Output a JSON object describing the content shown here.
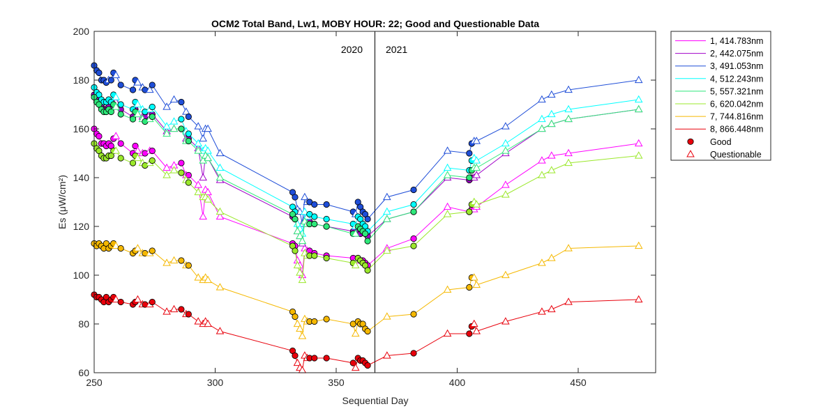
{
  "chart_data": {
    "type": "line",
    "title": "OCM2 Total Band,  Lw1, MOBY HOUR: 22;  Good and Questionable Data",
    "xlabel": "Sequential Day",
    "ylabel": "Es (μW/cm²)",
    "xlim": [
      250,
      482
    ],
    "ylim": [
      60,
      200
    ],
    "xticks": [
      250,
      300,
      350,
      400,
      450
    ],
    "yticks": [
      60,
      80,
      100,
      120,
      140,
      160,
      180,
      200
    ],
    "grid": false,
    "legend_position": "outside-top-right",
    "year_divider": {
      "x": 366,
      "left_label": "2020",
      "right_label": "2021"
    },
    "x": [
      250,
      251,
      252,
      253,
      254,
      255,
      256,
      257,
      258,
      259,
      261,
      266,
      267,
      268,
      270,
      271,
      273,
      274,
      280,
      283,
      286,
      288,
      289,
      293,
      295,
      296,
      297,
      302,
      332,
      333,
      334,
      335,
      336,
      337,
      338,
      339,
      341,
      346,
      357,
      358,
      359,
      360,
      361,
      362,
      363,
      371,
      382,
      396,
      405,
      406,
      407,
      408,
      420,
      435,
      439,
      446,
      475
    ],
    "series": [
      {
        "name": "1, 414.783nm",
        "color": "#ff00ff",
        "values": [
          160,
          158,
          157,
          154,
          154,
          153,
          154,
          153,
          156,
          157,
          154,
          150,
          153,
          151,
          150,
          150,
          151,
          151,
          144,
          145,
          146,
          141,
          141,
          137,
          124,
          135,
          134,
          124,
          113,
          112,
          106,
          104,
          100,
          111,
          110,
          110,
          109,
          108,
          107,
          106,
          107,
          106,
          106,
          105,
          104,
          111,
          115,
          128,
          126,
          127,
          127,
          128,
          137,
          147,
          149,
          150,
          154
        ],
        "quality": [
          "G",
          "G",
          "G",
          "G",
          "G",
          "G",
          "G",
          "G",
          "G",
          "Q",
          "G",
          "G",
          "G",
          "Q",
          "Q",
          "G",
          "Q",
          "G",
          "Q",
          "Q",
          "G",
          "Q",
          "G",
          "Q",
          "Q",
          "Q",
          "Q",
          "Q",
          "G",
          "G",
          "Q",
          "Q",
          "Q",
          "Q",
          "Q",
          "G",
          "G",
          "G",
          "G",
          "Q",
          "G",
          "G",
          "G",
          "G",
          "G",
          "Q",
          "G",
          "Q",
          "G",
          "G",
          "Q",
          "Q",
          "Q",
          "Q",
          "Q",
          "Q",
          "Q"
        ]
      },
      {
        "name": "2, 442.075nm",
        "color": "#a000c8",
        "values": [
          174,
          172,
          171,
          169,
          168,
          168,
          169,
          168,
          170,
          171,
          168,
          165,
          168,
          166,
          165,
          165,
          166,
          166,
          159,
          160,
          160,
          156,
          156,
          152,
          140,
          149,
          148,
          139,
          124,
          123,
          118,
          116,
          113,
          123,
          122,
          122,
          121,
          120,
          118,
          117,
          118,
          117,
          118,
          117,
          116,
          123,
          126,
          140,
          139,
          140,
          140,
          141,
          150,
          160,
          162,
          164,
          168
        ],
        "quality": [
          "G",
          "G",
          "G",
          "G",
          "G",
          "G",
          "G",
          "G",
          "G",
          "Q",
          "G",
          "G",
          "G",
          "Q",
          "Q",
          "G",
          "Q",
          "G",
          "Q",
          "Q",
          "G",
          "Q",
          "G",
          "Q",
          "Q",
          "Q",
          "Q",
          "Q",
          "G",
          "G",
          "Q",
          "Q",
          "Q",
          "Q",
          "Q",
          "G",
          "G",
          "G",
          "G",
          "Q",
          "G",
          "G",
          "G",
          "G",
          "G",
          "Q",
          "G",
          "Q",
          "G",
          "G",
          "Q",
          "Q",
          "Q",
          "Q",
          "Q",
          "Q",
          "Q"
        ]
      },
      {
        "name": "3, 491.053nm",
        "color": "#1f4ed8",
        "values": [
          186,
          184,
          183,
          180,
          180,
          179,
          180,
          180,
          183,
          182,
          178,
          176,
          180,
          179,
          177,
          176,
          176,
          178,
          169,
          172,
          171,
          167,
          165,
          161,
          156,
          160,
          160,
          150,
          134,
          132,
          127,
          126,
          121,
          132,
          130,
          130,
          129,
          129,
          126,
          125,
          130,
          128,
          126,
          125,
          123,
          132,
          135,
          151,
          150,
          154,
          155,
          155,
          161,
          172,
          174,
          176,
          180
        ],
        "quality": [
          "G",
          "G",
          "G",
          "G",
          "G",
          "G",
          "Q",
          "G",
          "G",
          "Q",
          "G",
          "G",
          "G",
          "Q",
          "Q",
          "G",
          "Q",
          "G",
          "Q",
          "Q",
          "G",
          "Q",
          "G",
          "Q",
          "Q",
          "Q",
          "Q",
          "Q",
          "G",
          "G",
          "Q",
          "Q",
          "Q",
          "Q",
          "Q",
          "G",
          "G",
          "G",
          "G",
          "Q",
          "G",
          "G",
          "G",
          "G",
          "G",
          "Q",
          "G",
          "Q",
          "G",
          "G",
          "Q",
          "Q",
          "Q",
          "Q",
          "Q",
          "Q",
          "Q"
        ]
      },
      {
        "name": "4, 512.243nm",
        "color": "#00ffff",
        "values": [
          177,
          175,
          174,
          172,
          171,
          171,
          172,
          171,
          174,
          173,
          170,
          168,
          171,
          170,
          168,
          167,
          168,
          169,
          161,
          163,
          164,
          159,
          158,
          154,
          151,
          152,
          151,
          144,
          128,
          126,
          121,
          119,
          117,
          126,
          124,
          125,
          124,
          123,
          121,
          120,
          124,
          123,
          121,
          120,
          118,
          126,
          129,
          144,
          143,
          147,
          148,
          147,
          154,
          164,
          166,
          168,
          172
        ],
        "quality": [
          "G",
          "G",
          "G",
          "G",
          "G",
          "G",
          "G",
          "G",
          "G",
          "Q",
          "G",
          "G",
          "G",
          "Q",
          "Q",
          "G",
          "Q",
          "G",
          "Q",
          "Q",
          "G",
          "Q",
          "G",
          "Q",
          "Q",
          "Q",
          "Q",
          "Q",
          "G",
          "G",
          "Q",
          "Q",
          "Q",
          "Q",
          "Q",
          "G",
          "G",
          "G",
          "G",
          "Q",
          "G",
          "G",
          "G",
          "G",
          "G",
          "Q",
          "G",
          "Q",
          "G",
          "G",
          "Q",
          "Q",
          "Q",
          "Q",
          "Q",
          "Q",
          "Q"
        ]
      },
      {
        "name": "5, 557.321nm",
        "color": "#2ee87a",
        "values": [
          173,
          171,
          170,
          168,
          167,
          167,
          168,
          167,
          170,
          169,
          166,
          164,
          167,
          166,
          164,
          163,
          164,
          165,
          158,
          160,
          160,
          155,
          155,
          151,
          147,
          149,
          148,
          140,
          125,
          123,
          118,
          116,
          114,
          122,
          121,
          121,
          121,
          120,
          117,
          117,
          120,
          119,
          118,
          117,
          114,
          123,
          126,
          141,
          140,
          143,
          144,
          144,
          151,
          160,
          162,
          164,
          168
        ],
        "quality": [
          "G",
          "G",
          "G",
          "G",
          "G",
          "G",
          "G",
          "G",
          "G",
          "Q",
          "G",
          "G",
          "G",
          "Q",
          "Q",
          "G",
          "Q",
          "G",
          "Q",
          "Q",
          "G",
          "Q",
          "G",
          "Q",
          "Q",
          "Q",
          "Q",
          "Q",
          "G",
          "G",
          "Q",
          "Q",
          "Q",
          "Q",
          "Q",
          "G",
          "G",
          "G",
          "G",
          "Q",
          "G",
          "G",
          "G",
          "G",
          "G",
          "Q",
          "G",
          "Q",
          "G",
          "G",
          "Q",
          "Q",
          "Q",
          "Q",
          "Q",
          "Q",
          "Q"
        ]
      },
      {
        "name": "6, 620.042nm",
        "color": "#9be82b",
        "values": [
          154,
          152,
          151,
          149,
          148,
          148,
          149,
          149,
          151,
          151,
          148,
          146,
          149,
          148,
          146,
          145,
          146,
          147,
          141,
          143,
          142,
          139,
          138,
          134,
          132,
          132,
          131,
          126,
          112,
          110,
          104,
          101,
          98,
          109,
          108,
          108,
          108,
          107,
          105,
          104,
          107,
          106,
          105,
          104,
          102,
          110,
          112,
          125,
          126,
          129,
          130,
          129,
          133,
          141,
          143,
          146,
          149
        ],
        "quality": [
          "G",
          "G",
          "G",
          "G",
          "G",
          "G",
          "G",
          "G",
          "G",
          "Q",
          "G",
          "G",
          "G",
          "Q",
          "Q",
          "G",
          "Q",
          "G",
          "Q",
          "Q",
          "G",
          "Q",
          "G",
          "Q",
          "Q",
          "Q",
          "Q",
          "Q",
          "G",
          "G",
          "Q",
          "Q",
          "Q",
          "Q",
          "Q",
          "G",
          "G",
          "G",
          "G",
          "Q",
          "G",
          "G",
          "G",
          "G",
          "G",
          "Q",
          "G",
          "Q",
          "G",
          "G",
          "Q",
          "Q",
          "Q",
          "Q",
          "Q",
          "Q",
          "Q"
        ]
      },
      {
        "name": "7, 744.816nm",
        "color": "#f5b800",
        "values": [
          113,
          112,
          113,
          112,
          111,
          113,
          111,
          112,
          113,
          112,
          111,
          109,
          110,
          111,
          109,
          109,
          109,
          110,
          105,
          106,
          106,
          104,
          104,
          99,
          98,
          99,
          98,
          95,
          85,
          83,
          80,
          78,
          75,
          82,
          81,
          81,
          81,
          82,
          80,
          76,
          81,
          80,
          80,
          78,
          77,
          83,
          84,
          94,
          95,
          99,
          99,
          96,
          100,
          105,
          107,
          111,
          112
        ],
        "quality": [
          "G",
          "G",
          "G",
          "G",
          "G",
          "G",
          "G",
          "G",
          "G",
          "Q",
          "G",
          "G",
          "G",
          "Q",
          "Q",
          "G",
          "Q",
          "G",
          "Q",
          "Q",
          "G",
          "Q",
          "G",
          "Q",
          "Q",
          "Q",
          "Q",
          "Q",
          "G",
          "G",
          "Q",
          "Q",
          "Q",
          "Q",
          "Q",
          "G",
          "G",
          "G",
          "G",
          "Q",
          "G",
          "G",
          "G",
          "G",
          "G",
          "Q",
          "G",
          "Q",
          "G",
          "G",
          "Q",
          "Q",
          "Q",
          "Q",
          "Q",
          "Q",
          "Q"
        ]
      },
      {
        "name": "8, 866.448nm",
        "color": "#e8000b",
        "values": [
          92,
          91,
          91,
          90,
          89,
          91,
          89,
          90,
          91,
          90,
          89,
          88,
          89,
          90,
          88,
          88,
          88,
          89,
          85,
          86,
          86,
          84,
          84,
          81,
          80,
          81,
          80,
          77,
          69,
          67,
          64,
          62,
          61,
          67,
          66,
          66,
          66,
          66,
          64,
          62,
          66,
          65,
          65,
          64,
          63,
          67,
          68,
          76,
          76,
          79,
          80,
          77,
          81,
          85,
          86,
          89,
          90
        ],
        "quality": [
          "G",
          "G",
          "G",
          "G",
          "G",
          "G",
          "G",
          "G",
          "G",
          "Q",
          "G",
          "G",
          "G",
          "Q",
          "Q",
          "G",
          "Q",
          "G",
          "Q",
          "Q",
          "G",
          "Q",
          "G",
          "Q",
          "Q",
          "Q",
          "Q",
          "Q",
          "G",
          "G",
          "Q",
          "Q",
          "Q",
          "Q",
          "Q",
          "G",
          "G",
          "G",
          "G",
          "Q",
          "G",
          "G",
          "G",
          "G",
          "G",
          "Q",
          "G",
          "Q",
          "G",
          "G",
          "Q",
          "Q",
          "Q",
          "Q",
          "Q",
          "Q",
          "Q"
        ]
      }
    ],
    "marker_legend": [
      {
        "label": "Good",
        "marker": "circle",
        "color": "#e8000b"
      },
      {
        "label": "Questionable",
        "marker": "triangle",
        "color": "#e8000b"
      }
    ]
  }
}
